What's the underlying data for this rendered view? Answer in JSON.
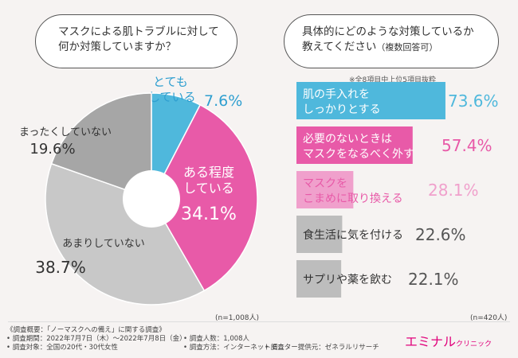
{
  "questions": {
    "q1_line1": "マスクによる肌トラブルに対して",
    "q1_line2": "何か対策していますか？",
    "q2_line1": "具体的にどのような対策しているか",
    "q2_line2": "教えてください",
    "q2_sub": "（複数回答可）"
  },
  "note": "※全8項目中上位5項目抜粋",
  "pie_n": "(n=1,008人)",
  "bar_n": "(n=420人)",
  "chart_data": [
    {
      "type": "pie",
      "title": "マスクによる肌トラブルに対して何か対策していますか？",
      "slices": [
        {
          "label_lines": [
            "とても",
            "している"
          ],
          "value": 7.6,
          "value_text": "7.6%",
          "color": "#4fb8dc"
        },
        {
          "label_lines": [
            "ある程度",
            "している"
          ],
          "value": 34.1,
          "value_text": "34.1%",
          "color": "#e85aa8"
        },
        {
          "label_lines": [
            "あまりしていない"
          ],
          "value": 38.7,
          "value_text": "38.7%",
          "color": "#c8c8c8"
        },
        {
          "label_lines": [
            "まったくしていない"
          ],
          "value": 19.6,
          "value_text": "19.6%",
          "color": "#a6a6a6"
        }
      ],
      "n": "(n=1,008人)"
    },
    {
      "type": "bar",
      "orientation": "horizontal",
      "title": "具体的にどのような対策しているか教えてください（複数回答可）",
      "categories": [
        [
          "肌の手入れを",
          "しっかりとする"
        ],
        [
          "必要のないときは",
          "マスクをなるべく外す"
        ],
        [
          "マスクを",
          "こまめに取り換える"
        ],
        [
          "食生活に気を付ける"
        ],
        [
          "サプリや薬を飲む"
        ]
      ],
      "values": [
        73.6,
        57.4,
        28.1,
        22.6,
        22.1
      ],
      "value_texts": [
        "73.6%",
        "57.4%",
        "28.1%",
        "22.6%",
        "22.1%"
      ],
      "colors": [
        "#4fb8dc",
        "#e85aa8",
        "#f0a0cc",
        "#bdbdbd",
        "#bdbdbd"
      ],
      "value_colors": [
        "#4fb8dc",
        "#e85aa8",
        "#f0a0cc",
        "#555555",
        "#555555"
      ],
      "xlim": [
        0,
        100
      ],
      "n": "(n=420人)"
    }
  ],
  "footer": {
    "line1": "《調査概要：「ノーマスクへの備え」に関する調査》",
    "line2": "• 調査期間：2022年7月7日（木）～2022年7月8日（金）",
    "line3": "• 調査対象：全国の20代・30代女性",
    "line4": "• 調査人数：1,008人",
    "line5": "• 調査方法：インターネット調査",
    "line6": "• モニター提供元：ゼネラルリサーチ"
  },
  "brand": {
    "main": "エミナル",
    "sub": "クリニック"
  }
}
